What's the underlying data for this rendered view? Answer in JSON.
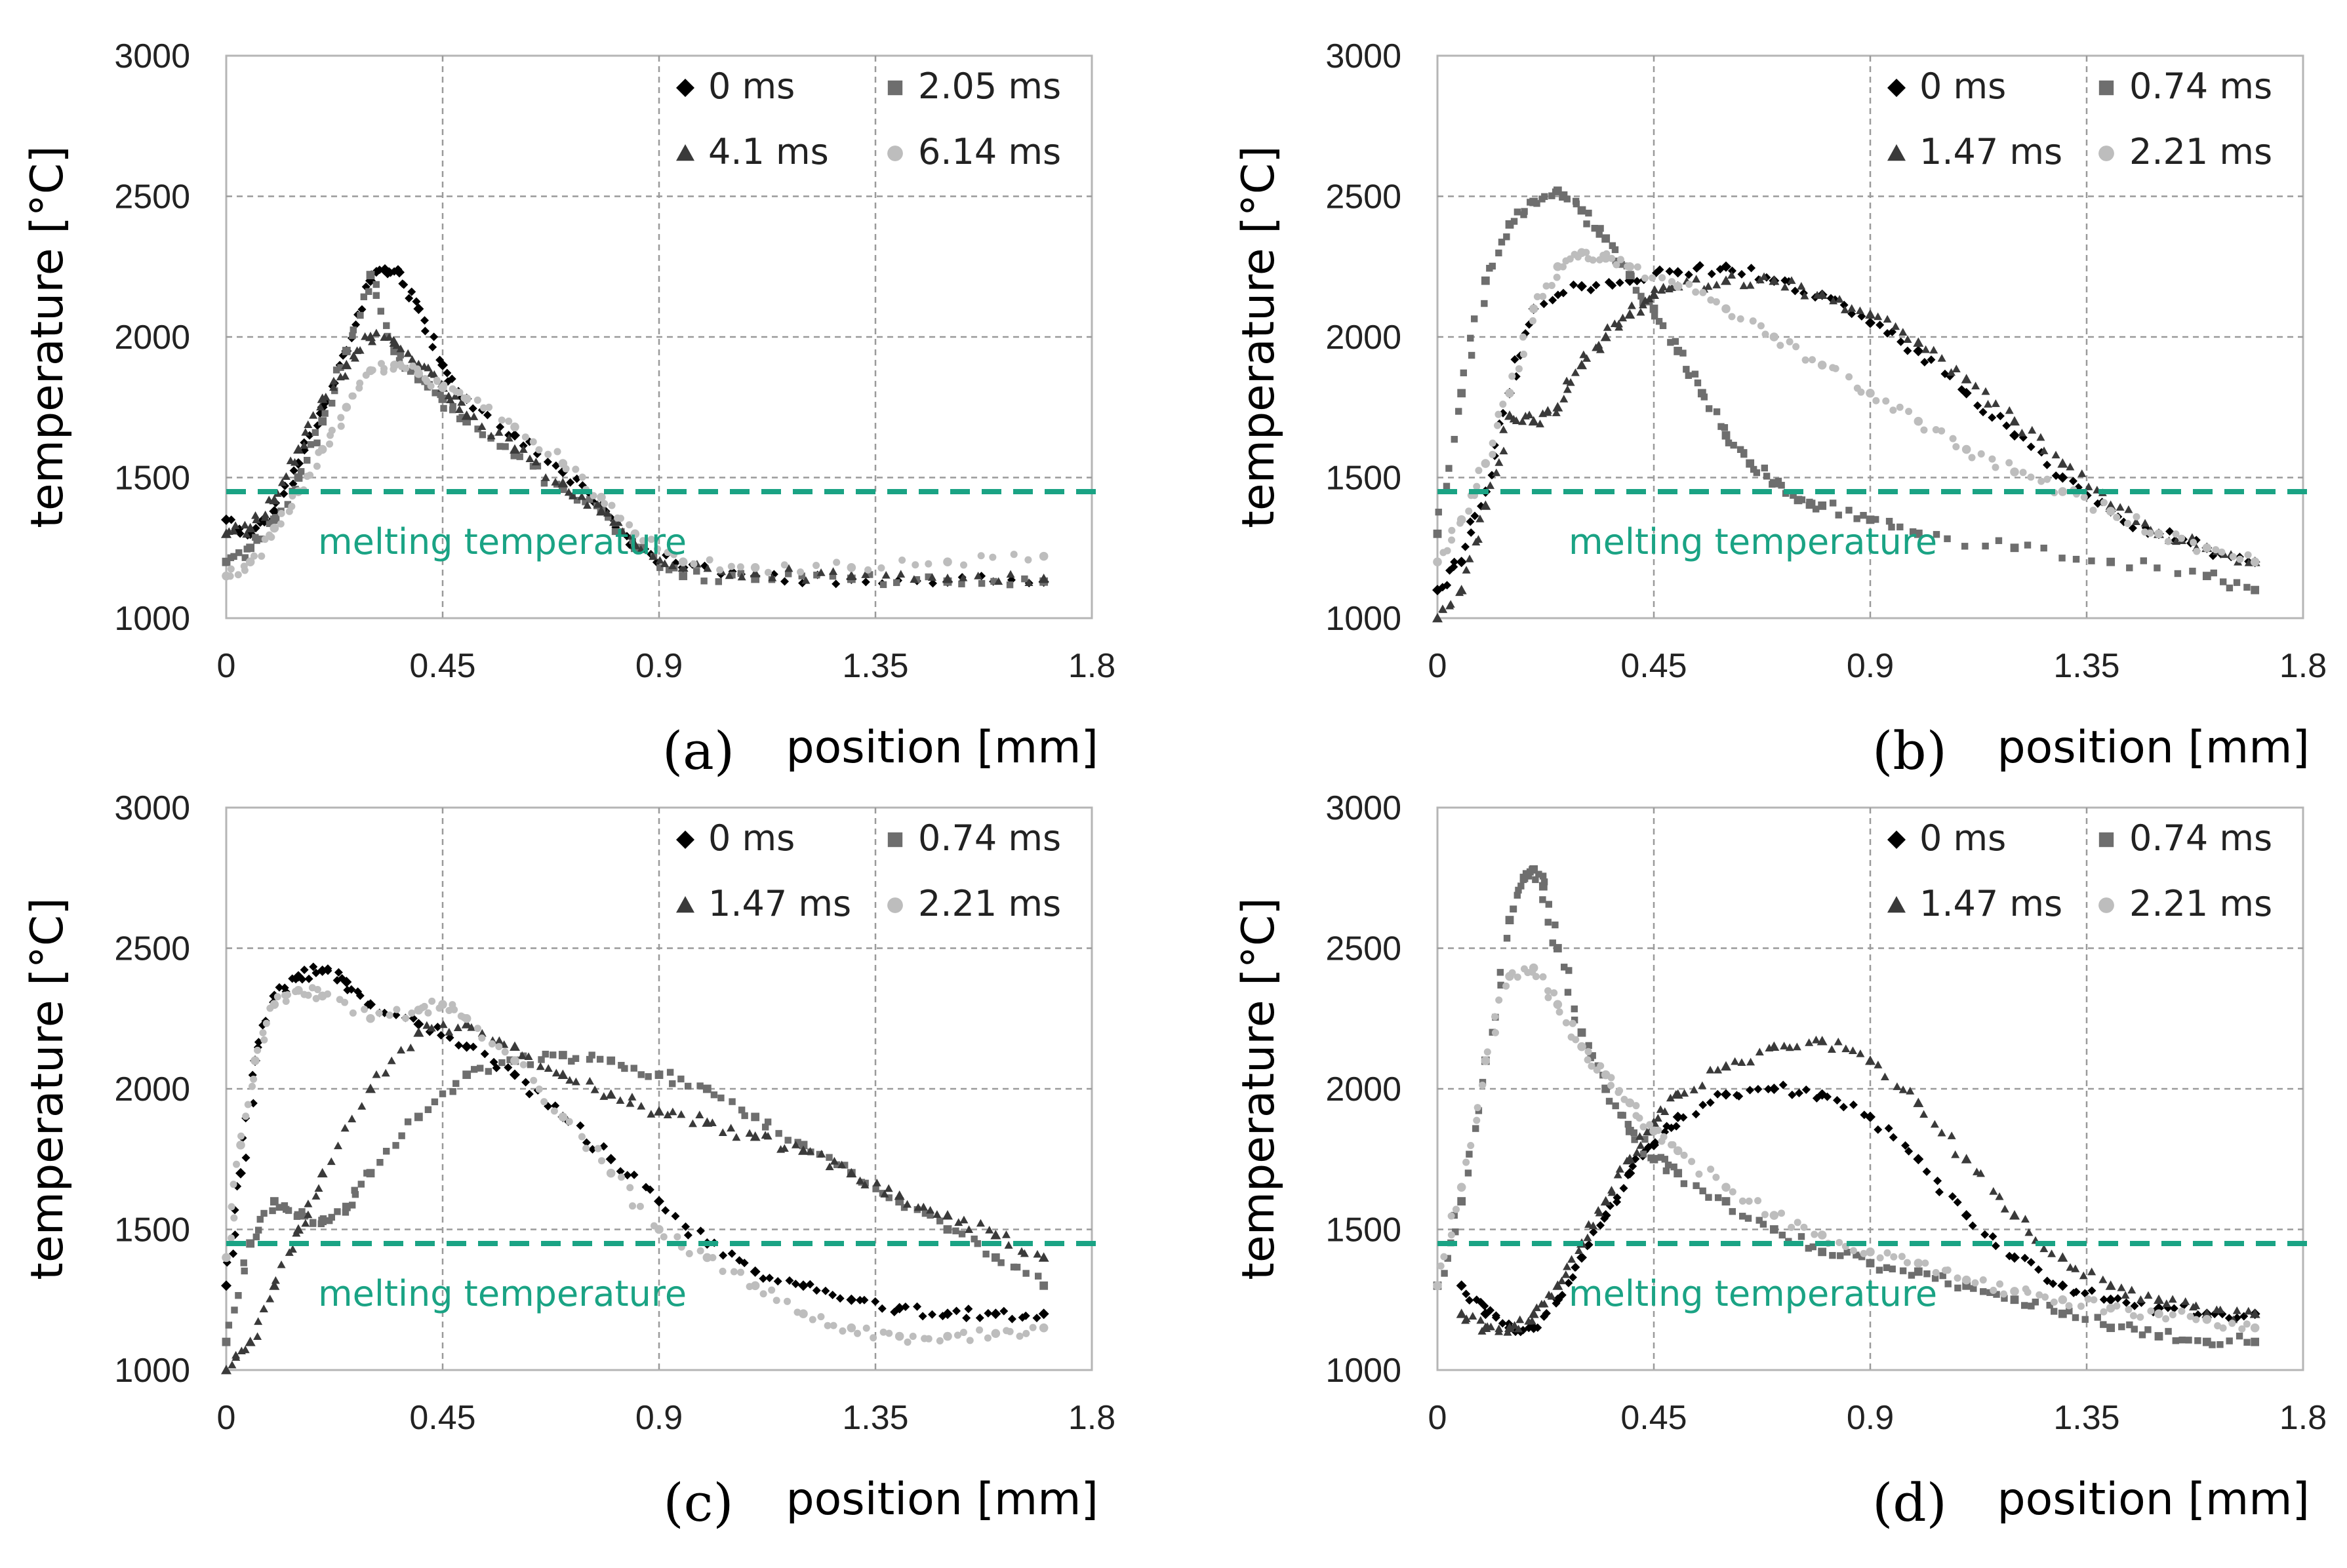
{
  "colors": {
    "series": [
      "#000000",
      "#6e6e6e",
      "#3a3a3a",
      "#bdbdbd"
    ],
    "melting": "#1aa384",
    "grid": "#9a9a9a",
    "frame": "#b5b5b5"
  },
  "chart_data": [
    {
      "type": "scatter",
      "panel_label": "(a)",
      "xlabel": "position [mm]",
      "ylabel": "temperature [°C]",
      "xlim": [
        0,
        1.8
      ],
      "ylim": [
        1000,
        3000
      ],
      "xticks": [
        0,
        0.45,
        0.9,
        1.35,
        1.8
      ],
      "xtick_labels": [
        "0",
        "0.45",
        "0.9",
        "1.35",
        "1.8"
      ],
      "yticks": [
        1000,
        1500,
        2000,
        2500,
        3000
      ],
      "ytick_labels": [
        "1000",
        "1500",
        "2000",
        "2500",
        "3000"
      ],
      "melting": {
        "value": 1450,
        "label": "melting temperature"
      },
      "series": [
        {
          "name": "0 ms",
          "marker": "diamond",
          "x": [
            0,
            0.05,
            0.1,
            0.15,
            0.2,
            0.25,
            0.3,
            0.33,
            0.36,
            0.4,
            0.45,
            0.5,
            0.6,
            0.7,
            0.78,
            0.85,
            0.95,
            1.1,
            1.3,
            1.5,
            1.7
          ],
          "y": [
            1350,
            1300,
            1380,
            1550,
            1750,
            1950,
            2200,
            2240,
            2230,
            2100,
            1900,
            1780,
            1650,
            1520,
            1400,
            1250,
            1180,
            1150,
            1140,
            1130,
            1130
          ]
        },
        {
          "name": "2.05 ms",
          "marker": "square",
          "x": [
            0,
            0.05,
            0.1,
            0.15,
            0.2,
            0.25,
            0.3,
            0.35,
            0.4,
            0.45,
            0.5,
            0.6,
            0.7,
            0.78,
            0.85,
            0.95,
            1.1,
            1.3,
            1.5,
            1.7
          ],
          "y": [
            1200,
            1250,
            1350,
            1500,
            1700,
            1950,
            2220,
            1950,
            1850,
            1780,
            1700,
            1580,
            1460,
            1380,
            1250,
            1150,
            1140,
            1140,
            1130,
            1130
          ]
        },
        {
          "name": "4.1 ms",
          "marker": "triangle",
          "x": [
            0,
            0.05,
            0.1,
            0.15,
            0.2,
            0.25,
            0.3,
            0.35,
            0.4,
            0.45,
            0.5,
            0.6,
            0.7,
            0.78,
            0.85,
            0.95,
            1.1,
            1.3,
            1.5,
            1.7
          ],
          "y": [
            1300,
            1320,
            1420,
            1600,
            1780,
            1900,
            2000,
            1980,
            1900,
            1820,
            1720,
            1600,
            1480,
            1380,
            1260,
            1180,
            1160,
            1150,
            1140,
            1140
          ]
        },
        {
          "name": "6.14 ms",
          "marker": "circle",
          "x": [
            0,
            0.05,
            0.1,
            0.15,
            0.2,
            0.25,
            0.3,
            0.35,
            0.4,
            0.45,
            0.5,
            0.6,
            0.7,
            0.78,
            0.85,
            0.95,
            1.1,
            1.3,
            1.5,
            1.7
          ],
          "y": [
            1150,
            1200,
            1320,
            1450,
            1600,
            1750,
            1880,
            1900,
            1870,
            1820,
            1780,
            1680,
            1550,
            1430,
            1300,
            1200,
            1180,
            1180,
            1200,
            1220
          ]
        }
      ]
    },
    {
      "type": "scatter",
      "panel_label": "(b)",
      "xlabel": "position [mm]",
      "ylabel": "temperature [°C]",
      "xlim": [
        0,
        1.8
      ],
      "ylim": [
        1000,
        3000
      ],
      "xticks": [
        0,
        0.45,
        0.9,
        1.35,
        1.8
      ],
      "xtick_labels": [
        "0",
        "0.45",
        "0.9",
        "1.35",
        "1.8"
      ],
      "yticks": [
        1000,
        1500,
        2000,
        2500,
        3000
      ],
      "ytick_labels": [
        "1000",
        "1500",
        "2000",
        "2500",
        "3000"
      ],
      "melting": {
        "value": 1450,
        "label": "melting temperature"
      },
      "series": [
        {
          "name": "0 ms",
          "marker": "diamond",
          "x": [
            0,
            0.05,
            0.1,
            0.15,
            0.2,
            0.3,
            0.4,
            0.5,
            0.6,
            0.7,
            0.8,
            0.9,
            1.0,
            1.1,
            1.2,
            1.3,
            1.4,
            1.5,
            1.6,
            1.7
          ],
          "y": [
            1100,
            1200,
            1450,
            1800,
            2100,
            2180,
            2200,
            2230,
            2250,
            2200,
            2150,
            2050,
            1950,
            1800,
            1650,
            1500,
            1380,
            1300,
            1250,
            1200
          ]
        },
        {
          "name": "0.74 ms",
          "marker": "square",
          "x": [
            0,
            0.05,
            0.1,
            0.15,
            0.2,
            0.25,
            0.3,
            0.35,
            0.4,
            0.45,
            0.5,
            0.55,
            0.6,
            0.65,
            0.7,
            0.75,
            0.8,
            0.9,
            1.0,
            1.2,
            1.4,
            1.6,
            1.7
          ],
          "y": [
            1300,
            1800,
            2200,
            2400,
            2480,
            2520,
            2450,
            2350,
            2220,
            2100,
            1950,
            1800,
            1650,
            1550,
            1480,
            1420,
            1400,
            1350,
            1300,
            1250,
            1200,
            1150,
            1100
          ]
        },
        {
          "name": "1.47 ms",
          "marker": "triangle",
          "x": [
            0,
            0.05,
            0.1,
            0.15,
            0.2,
            0.25,
            0.3,
            0.35,
            0.4,
            0.45,
            0.5,
            0.6,
            0.7,
            0.8,
            0.9,
            1.0,
            1.1,
            1.2,
            1.3,
            1.4,
            1.5,
            1.6,
            1.7
          ],
          "y": [
            1000,
            1100,
            1400,
            1720,
            1700,
            1750,
            1900,
            2000,
            2080,
            2150,
            2180,
            2200,
            2200,
            2150,
            2080,
            1980,
            1850,
            1700,
            1550,
            1400,
            1300,
            1250,
            1200
          ]
        },
        {
          "name": "2.21 ms",
          "marker": "circle",
          "x": [
            0,
            0.05,
            0.1,
            0.15,
            0.2,
            0.25,
            0.3,
            0.35,
            0.4,
            0.5,
            0.6,
            0.7,
            0.8,
            0.9,
            1.0,
            1.1,
            1.2,
            1.3,
            1.4,
            1.5,
            1.6,
            1.7
          ],
          "y": [
            1200,
            1350,
            1550,
            1800,
            2100,
            2250,
            2300,
            2280,
            2250,
            2180,
            2100,
            2000,
            1900,
            1800,
            1700,
            1600,
            1520,
            1450,
            1380,
            1300,
            1250,
            1200
          ]
        }
      ]
    },
    {
      "type": "scatter",
      "panel_label": "(c)",
      "xlabel": "position [mm]",
      "ylabel": "temperature [°C]",
      "xlim": [
        0,
        1.8
      ],
      "ylim": [
        1000,
        3000
      ],
      "xticks": [
        0,
        0.45,
        0.9,
        1.35,
        1.8
      ],
      "xtick_labels": [
        "0",
        "0.45",
        "0.9",
        "1.35",
        "1.8"
      ],
      "yticks": [
        1000,
        1500,
        2000,
        2500,
        3000
      ],
      "ytick_labels": [
        "1000",
        "1500",
        "2000",
        "2500",
        "3000"
      ],
      "melting": {
        "value": 1450,
        "label": "melting temperature"
      },
      "series": [
        {
          "name": "0 ms",
          "marker": "diamond",
          "x": [
            0,
            0.03,
            0.06,
            0.1,
            0.15,
            0.2,
            0.25,
            0.3,
            0.4,
            0.5,
            0.6,
            0.7,
            0.8,
            0.9,
            1.0,
            1.1,
            1.2,
            1.3,
            1.4,
            1.5,
            1.6,
            1.7
          ],
          "y": [
            1300,
            1700,
            2100,
            2330,
            2400,
            2420,
            2380,
            2300,
            2230,
            2150,
            2050,
            1900,
            1750,
            1600,
            1450,
            1350,
            1300,
            1250,
            1220,
            1200,
            1200,
            1200
          ]
        },
        {
          "name": "0.74 ms",
          "marker": "square",
          "x": [
            0,
            0.05,
            0.1,
            0.15,
            0.2,
            0.25,
            0.3,
            0.4,
            0.5,
            0.6,
            0.7,
            0.8,
            0.9,
            1.0,
            1.1,
            1.2,
            1.3,
            1.4,
            1.5,
            1.6,
            1.7
          ],
          "y": [
            1100,
            1450,
            1600,
            1550,
            1530,
            1580,
            1700,
            1900,
            2050,
            2100,
            2120,
            2100,
            2050,
            2000,
            1900,
            1800,
            1700,
            1600,
            1500,
            1400,
            1300
          ]
        },
        {
          "name": "1.47 ms",
          "marker": "triangle",
          "x": [
            0,
            0.05,
            0.1,
            0.15,
            0.2,
            0.3,
            0.4,
            0.5,
            0.6,
            0.7,
            0.8,
            0.9,
            1.0,
            1.1,
            1.2,
            1.3,
            1.4,
            1.5,
            1.6,
            1.7
          ],
          "y": [
            1000,
            1100,
            1300,
            1500,
            1700,
            2000,
            2200,
            2230,
            2150,
            2050,
            1980,
            1920,
            1880,
            1830,
            1780,
            1700,
            1620,
            1550,
            1480,
            1400
          ]
        },
        {
          "name": "2.21 ms",
          "marker": "circle",
          "x": [
            0,
            0.03,
            0.06,
            0.1,
            0.15,
            0.2,
            0.3,
            0.4,
            0.45,
            0.5,
            0.6,
            0.7,
            0.8,
            0.9,
            1.0,
            1.1,
            1.2,
            1.3,
            1.4,
            1.5,
            1.6,
            1.7
          ],
          "y": [
            1400,
            1800,
            2100,
            2300,
            2350,
            2330,
            2250,
            2280,
            2300,
            2250,
            2100,
            1900,
            1700,
            1500,
            1400,
            1300,
            1200,
            1150,
            1120,
            1120,
            1130,
            1150
          ]
        }
      ]
    },
    {
      "type": "scatter",
      "panel_label": "(d)",
      "xlabel": "position [mm]",
      "ylabel": "temperature [°C]",
      "xlim": [
        0,
        1.8
      ],
      "ylim": [
        1000,
        3000
      ],
      "xticks": [
        0,
        0.45,
        0.9,
        1.35,
        1.8
      ],
      "xtick_labels": [
        "0",
        "0.45",
        "0.9",
        "1.35",
        "1.8"
      ],
      "yticks": [
        1000,
        1500,
        2000,
        2500,
        3000
      ],
      "ytick_labels": [
        "1000",
        "1500",
        "2000",
        "2500",
        "3000"
      ],
      "melting": {
        "value": 1450,
        "label": "melting temperature"
      },
      "series": [
        {
          "name": "0 ms",
          "marker": "diamond",
          "x": [
            0.05,
            0.1,
            0.15,
            0.2,
            0.25,
            0.3,
            0.35,
            0.4,
            0.45,
            0.5,
            0.6,
            0.7,
            0.8,
            0.9,
            1.0,
            1.1,
            1.2,
            1.3,
            1.4,
            1.5,
            1.6,
            1.7
          ],
          "y": [
            1300,
            1200,
            1150,
            1150,
            1250,
            1400,
            1550,
            1700,
            1800,
            1900,
            1980,
            2000,
            1980,
            1900,
            1750,
            1550,
            1400,
            1300,
            1250,
            1220,
            1200,
            1200
          ]
        },
        {
          "name": "0.74 ms",
          "marker": "square",
          "x": [
            0,
            0.05,
            0.1,
            0.15,
            0.18,
            0.2,
            0.22,
            0.25,
            0.3,
            0.35,
            0.4,
            0.45,
            0.5,
            0.6,
            0.7,
            0.8,
            0.9,
            1.0,
            1.1,
            1.2,
            1.3,
            1.4,
            1.5,
            1.6,
            1.7
          ],
          "y": [
            1300,
            1600,
            2100,
            2600,
            2750,
            2780,
            2720,
            2500,
            2200,
            2000,
            1850,
            1750,
            1700,
            1600,
            1500,
            1420,
            1380,
            1350,
            1300,
            1250,
            1200,
            1150,
            1120,
            1100,
            1100
          ]
        },
        {
          "name": "1.47 ms",
          "marker": "triangle",
          "x": [
            0.05,
            0.1,
            0.15,
            0.2,
            0.25,
            0.3,
            0.35,
            0.4,
            0.45,
            0.5,
            0.6,
            0.7,
            0.8,
            0.9,
            1.0,
            1.1,
            1.2,
            1.3,
            1.4,
            1.5,
            1.6,
            1.7
          ],
          "y": [
            1200,
            1150,
            1150,
            1200,
            1300,
            1450,
            1600,
            1750,
            1880,
            1980,
            2080,
            2150,
            2170,
            2100,
            1950,
            1750,
            1550,
            1400,
            1300,
            1250,
            1200,
            1200
          ]
        },
        {
          "name": "2.21 ms",
          "marker": "circle",
          "x": [
            0,
            0.05,
            0.1,
            0.15,
            0.2,
            0.25,
            0.3,
            0.35,
            0.4,
            0.45,
            0.5,
            0.6,
            0.7,
            0.8,
            0.9,
            1.0,
            1.1,
            1.2,
            1.3,
            1.4,
            1.5,
            1.6,
            1.7
          ],
          "y": [
            1300,
            1650,
            2100,
            2400,
            2430,
            2300,
            2150,
            2050,
            1950,
            1850,
            1780,
            1650,
            1550,
            1480,
            1420,
            1380,
            1320,
            1280,
            1250,
            1220,
            1200,
            1180,
            1150
          ]
        }
      ]
    }
  ]
}
